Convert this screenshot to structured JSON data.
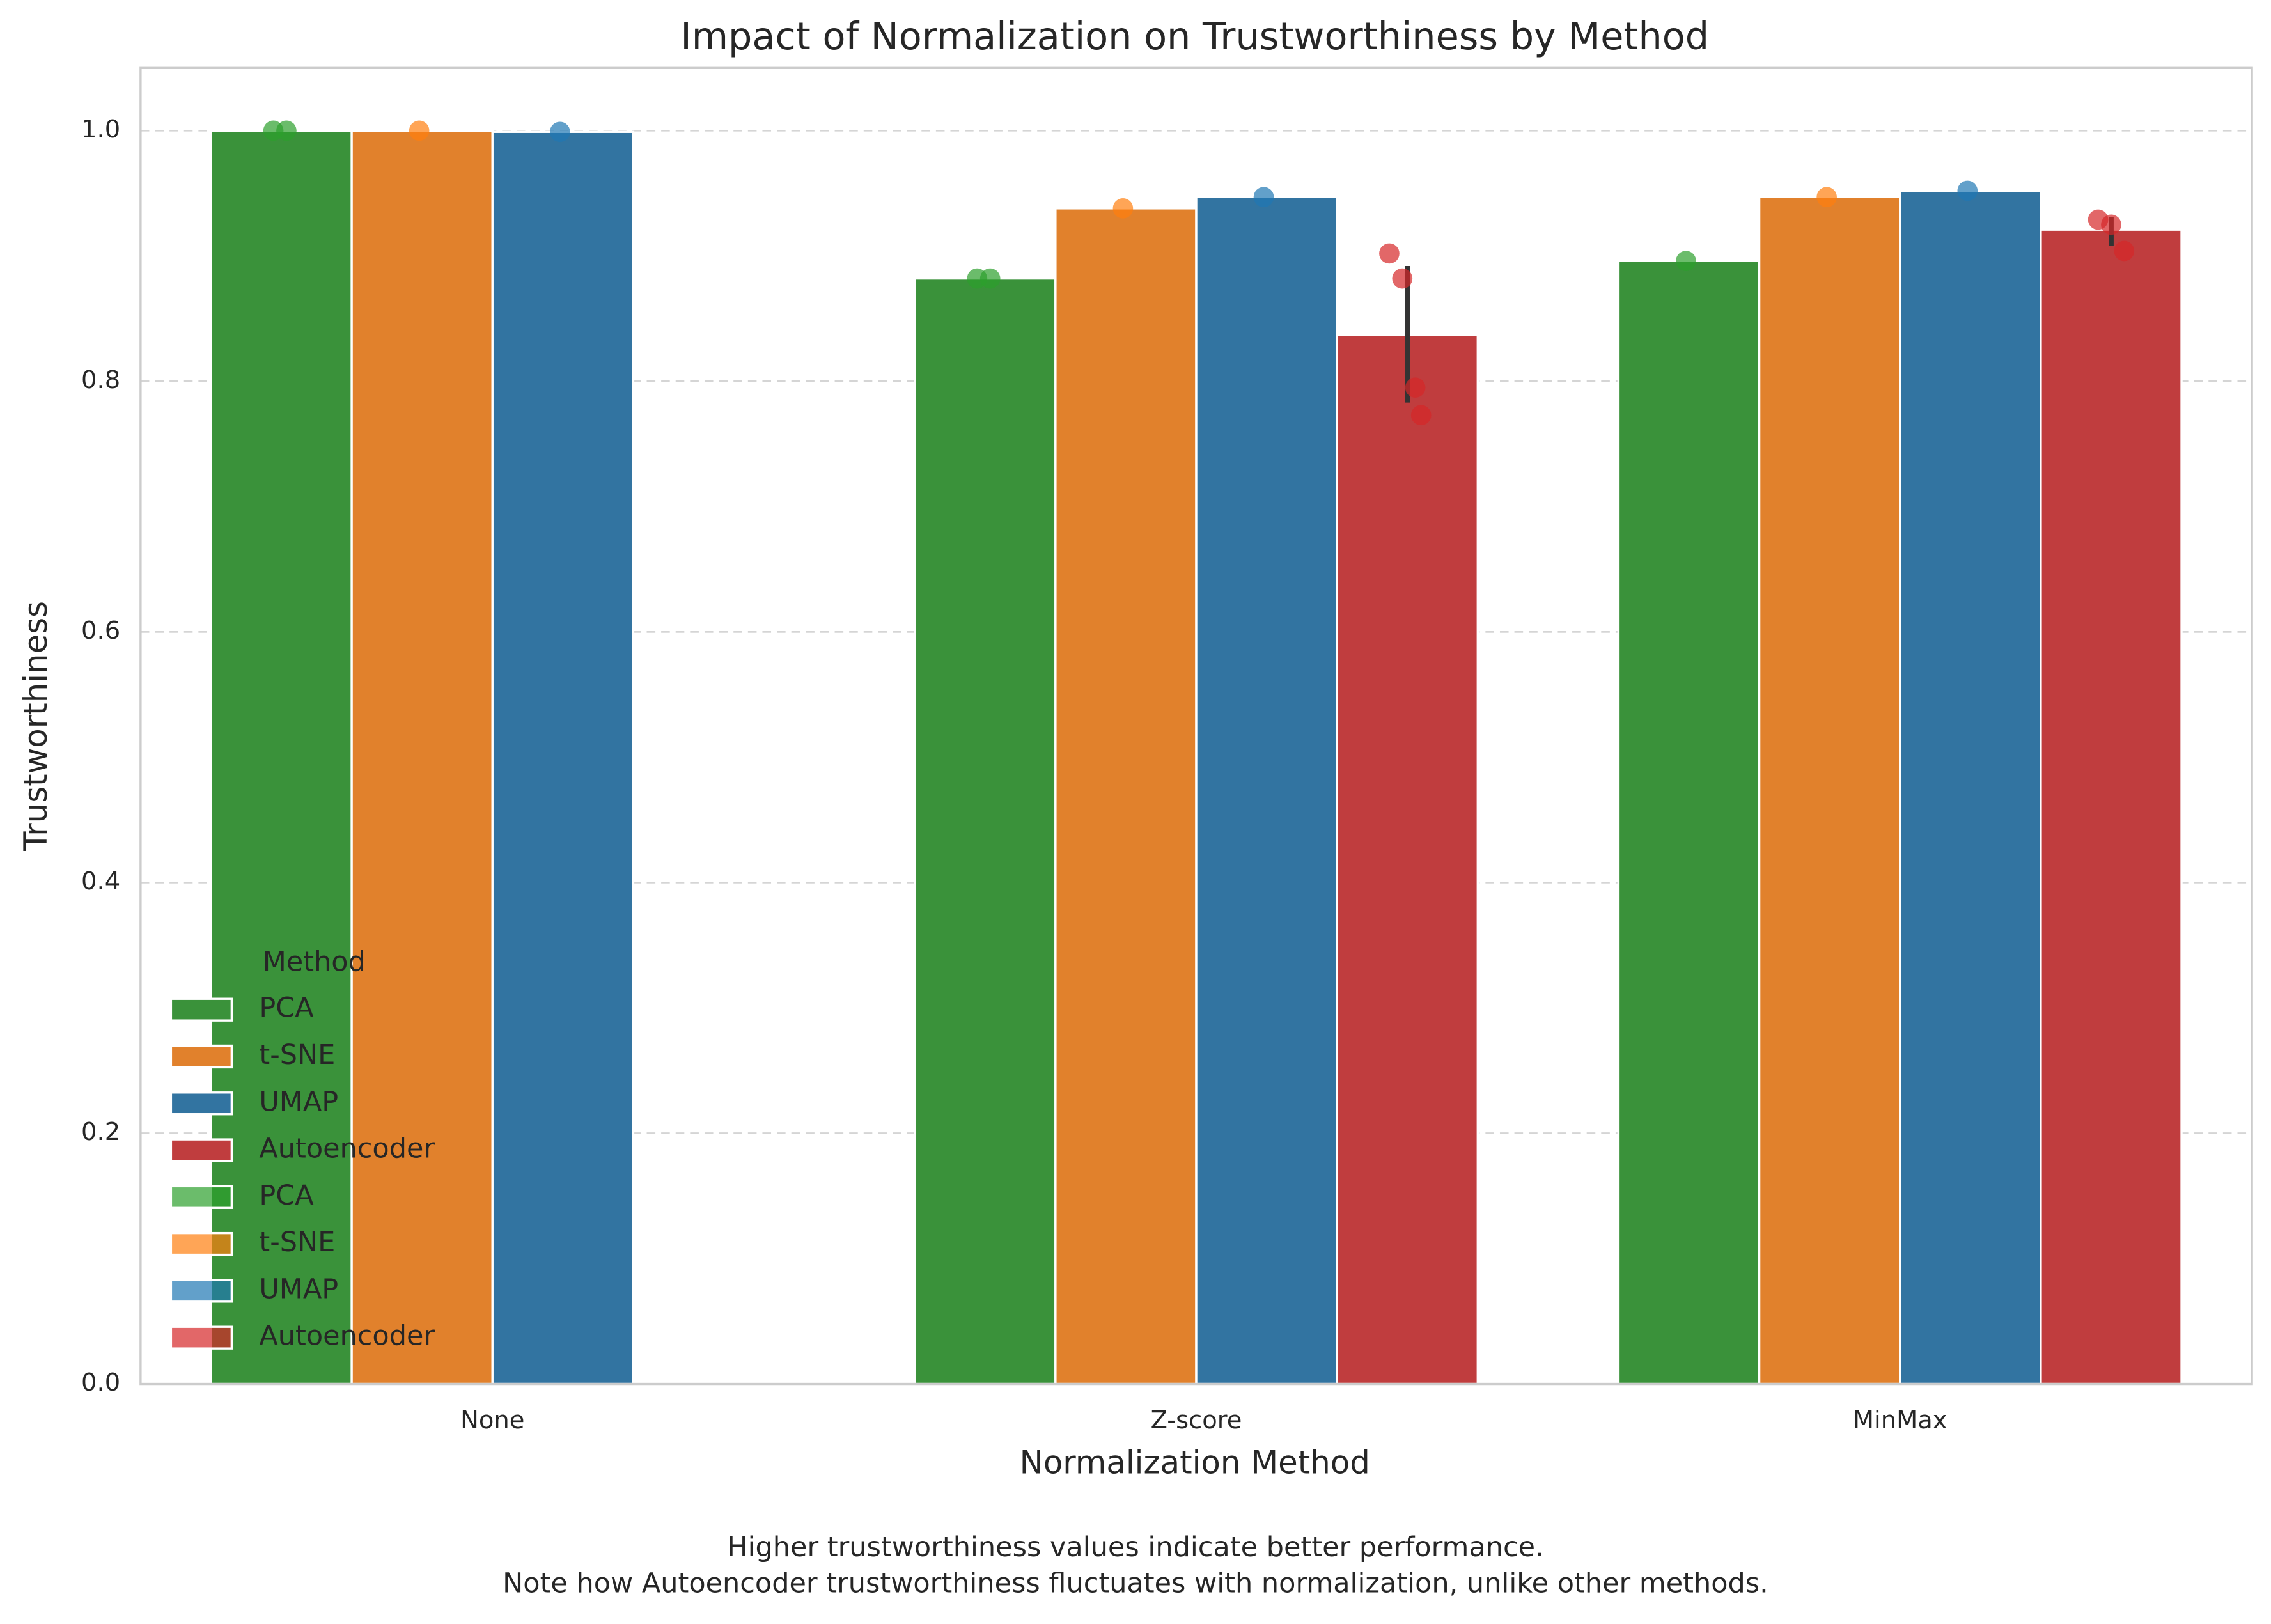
{
  "chart_data": {
    "type": "bar",
    "title": "Impact of Normalization on Trustworthiness by Method",
    "x_label": "Normalization Method",
    "y_label": "Trustworthiness",
    "caption": [
      "Higher trustworthiness values indicate better performance.",
      "Note how Autoencoder trustworthiness fluctuates with normalization, unlike other methods."
    ],
    "categories": [
      "None",
      "Z-score",
      "MinMax"
    ],
    "series": [
      {
        "name": "PCA",
        "color": "#3a923a",
        "values": [
          1.0,
          0.882,
          0.896
        ]
      },
      {
        "name": "t-SNE",
        "color": "#e1812c",
        "values": [
          1.0,
          0.938,
          0.947
        ]
      },
      {
        "name": "UMAP",
        "color": "#3274a1",
        "values": [
          0.999,
          0.947,
          0.952
        ]
      },
      {
        "name": "Autoencoder",
        "color": "#c03d3e",
        "values": [
          null,
          0.837,
          0.921
        ],
        "ci_low": [
          null,
          0.783,
          0.908
        ],
        "ci_high": [
          null,
          0.892,
          0.931
        ]
      }
    ],
    "point_series": [
      {
        "name": "PCA",
        "color": "#2ca02c",
        "values": [
          [
            1.0,
            1.0
          ],
          [
            0.882,
            0.882
          ],
          [
            0.896
          ]
        ]
      },
      {
        "name": "t-SNE",
        "color": "#ff7f0e",
        "values": [
          [
            1.0
          ],
          [
            0.938
          ],
          [
            0.947
          ]
        ]
      },
      {
        "name": "UMAP",
        "color": "#1f77b4",
        "values": [
          [
            0.999
          ],
          [
            0.947
          ],
          [
            0.952
          ]
        ]
      },
      {
        "name": "Autoencoder",
        "color": "#d62728",
        "values": [
          [],
          [
            0.902,
            0.882,
            0.795,
            0.773
          ],
          [
            0.929,
            0.925,
            0.904
          ]
        ]
      }
    ],
    "legend_title": "Method",
    "legend_position": "lower left",
    "ylim": [
      0,
      1.05
    ],
    "yticks": [
      {
        "value": 0,
        "label": "0.0"
      },
      0.2,
      0.4,
      0.6,
      0.8,
      {
        "value": 1,
        "label": "1.0"
      }
    ],
    "grid": true
  }
}
